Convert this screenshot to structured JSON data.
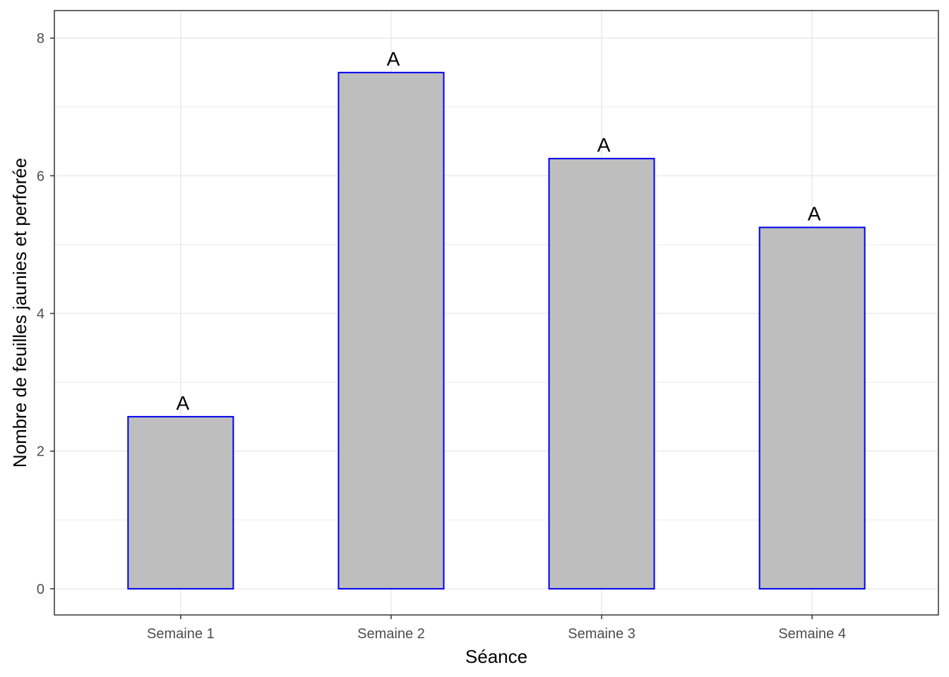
{
  "chart_data": {
    "type": "bar",
    "categories": [
      "Semaine 1",
      "Semaine 2",
      "Semaine 3",
      "Semaine 4"
    ],
    "values": [
      2.5,
      7.5,
      6.25,
      5.25
    ],
    "bar_labels": [
      "A",
      "A",
      "A",
      "A"
    ],
    "xlabel": "Séance",
    "ylabel": "Nombre de feuilles jaunies et perforée",
    "ylim": [
      -0.38,
      8.4
    ],
    "yticks": [
      0,
      2,
      4,
      6,
      8
    ],
    "grid": true,
    "colors": {
      "bar_fill": "#bebebe",
      "bar_stroke": "#0000ee",
      "grid": "#ebebeb",
      "panel_border": "#333333"
    }
  }
}
